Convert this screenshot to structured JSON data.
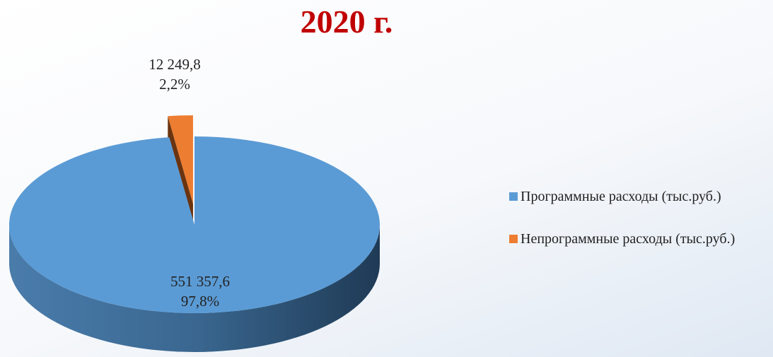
{
  "chart_data": {
    "type": "pie",
    "title": "2020 г.",
    "categories": [
      "Программные расходы (тыс.руб.)",
      "Непрограммные расходы (тыс.руб.)"
    ],
    "values": [
      551357.6,
      12249.8
    ],
    "value_labels": [
      "551 357,6",
      "12 249,8"
    ],
    "percentages": [
      97.8,
      2.2
    ],
    "percentage_labels": [
      "97,8%",
      "2,2%"
    ],
    "colors": [
      "#5b9bd5",
      "#ed7d31"
    ],
    "legend": "right"
  }
}
